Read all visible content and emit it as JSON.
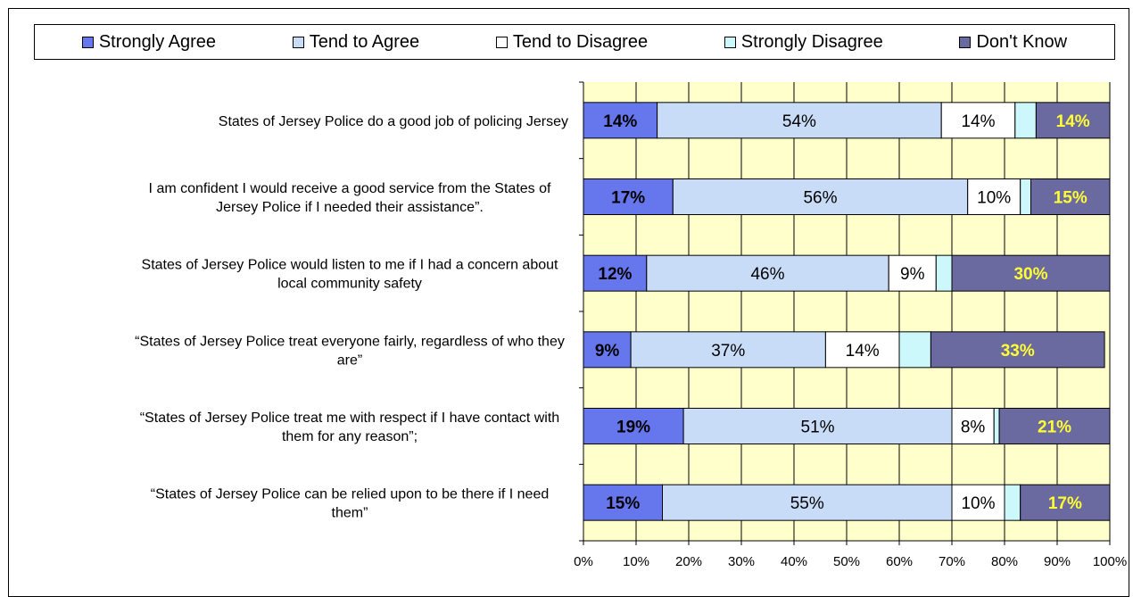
{
  "chart_data": {
    "type": "bar",
    "orientation": "horizontal",
    "stacked": true,
    "legend_position": "top",
    "categories": [
      "States of Jersey Police do a good job of policing Jersey",
      "I am confident I would receive a good service from the States of Jersey Police if I needed their assistance”.",
      "States of Jersey Police would listen to me if I had a concern about local community safety",
      "“States of Jersey Police treat everyone fairly, regardless of who they are”",
      "“States of Jersey Police treat me with respect if I have contact with them for any reason”;",
      "“States of Jersey Police can be relied upon to be there if I need them”"
    ],
    "category_lines": [
      [
        "States of Jersey Police do a good job of policing Jersey"
      ],
      [
        "I am confident I would receive a good service from the States of",
        "Jersey Police if I needed their assistance”."
      ],
      [
        "States of Jersey Police would listen to me if I had a concern about",
        "local community safety"
      ],
      [
        "“States of Jersey Police treat everyone fairly, regardless of who they",
        "are”"
      ],
      [
        "“States of Jersey Police treat me with respect if I have contact with",
        "them for any reason”;"
      ],
      [
        "“States of Jersey Police can be relied upon to be there if I need",
        "them”"
      ]
    ],
    "series": [
      {
        "name": "Strongly Agree",
        "color": "#6677ee",
        "label_color": "#000000",
        "label_bold": true,
        "values": [
          14,
          17,
          12,
          9,
          19,
          15
        ],
        "labels": [
          "14%",
          "17%",
          "12%",
          "9%",
          "19%",
          "15%"
        ]
      },
      {
        "name": "Tend to Agree",
        "color": "#c8dcf8",
        "label_color": "#000000",
        "label_bold": false,
        "values": [
          54,
          56,
          46,
          37,
          51,
          55
        ],
        "labels": [
          "54%",
          "56%",
          "46%",
          "37%",
          "51%",
          "55%"
        ]
      },
      {
        "name": "Tend to Disagree",
        "color": "#ffffff",
        "label_color": "#000000",
        "label_bold": false,
        "values": [
          14,
          10,
          9,
          14,
          8,
          10
        ],
        "labels": [
          "14%",
          "10%",
          "9%",
          "14%",
          "8%",
          "10%"
        ]
      },
      {
        "name": "Strongly Disagree",
        "color": "#ccf8fb",
        "label_color": "#000000",
        "label_bold": false,
        "values": [
          4,
          2,
          3,
          6,
          1,
          3
        ],
        "labels": [
          "",
          "",
          "",
          "",
          "",
          ""
        ]
      },
      {
        "name": "Don't Know",
        "color": "#6a6aa0",
        "label_color": "#ffff33",
        "label_bold": true,
        "values": [
          14,
          15,
          30,
          33,
          21,
          17
        ],
        "labels": [
          "14%",
          "15%",
          "30%",
          "33%",
          "21%",
          "17%"
        ]
      }
    ],
    "x_ticks": [
      "0%",
      "10%",
      "20%",
      "30%",
      "40%",
      "50%",
      "60%",
      "70%",
      "80%",
      "90%",
      "100%"
    ],
    "xlim": [
      0,
      100
    ],
    "grid": true,
    "plot_background": "#ffffcc"
  }
}
